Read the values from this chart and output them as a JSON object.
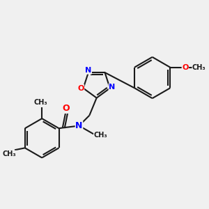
{
  "background_color": "#f0f0f0",
  "bond_color": "#1a1a1a",
  "bond_width": 1.5,
  "N_color": "#0000ff",
  "O_color": "#ff0000",
  "C_color": "#1a1a1a",
  "fig_width": 3.0,
  "fig_height": 3.0,
  "dpi": 100,
  "xlim": [
    -1.5,
    8.5
  ],
  "ylim": [
    -3.5,
    4.5
  ]
}
